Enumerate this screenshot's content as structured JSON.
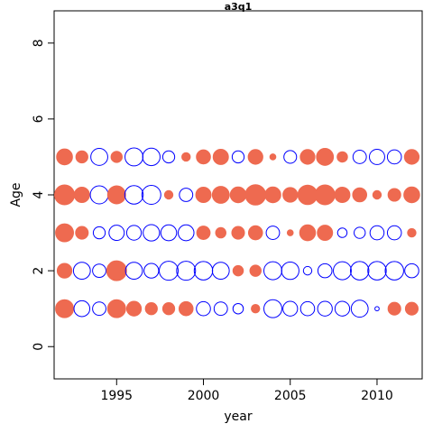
{
  "chart_data": {
    "type": "scatter",
    "title": "a3q1",
    "xlabel": "year",
    "ylabel": "Age",
    "xlim": [
      1991.4,
      2012.6
    ],
    "ylim": [
      -0.85,
      8.85
    ],
    "x_ticks": [
      1995,
      2000,
      2005,
      2010
    ],
    "y_ticks": [
      0,
      2,
      4,
      6,
      8
    ],
    "grid": false,
    "legend": "none",
    "colors": {
      "positive": "#EE6A50",
      "negative": "#0000FF"
    },
    "years": [
      1992,
      1993,
      1994,
      1995,
      1996,
      1997,
      1998,
      1999,
      2000,
      2001,
      2002,
      2003,
      2004,
      2005,
      2006,
      2007,
      2008,
      2009,
      2010,
      2011,
      2012
    ],
    "series": [
      {
        "age": 1,
        "values": [
          0.9,
          -0.7,
          -0.5,
          0.9,
          0.6,
          0.4,
          0.4,
          0.55,
          -0.55,
          -0.5,
          -0.3,
          0.2,
          -0.9,
          -0.6,
          -0.55,
          -0.6,
          -0.6,
          -0.8,
          -0.05,
          0.45,
          0.45
        ]
      },
      {
        "age": 2,
        "values": [
          0.6,
          -0.8,
          -0.5,
          1.1,
          -0.8,
          -0.6,
          -1.0,
          -1.0,
          -0.95,
          -0.8,
          0.3,
          0.35,
          -0.9,
          -0.85,
          -0.2,
          -0.55,
          -0.9,
          -0.95,
          -0.95,
          -0.95,
          -0.55
        ]
      },
      {
        "age": 3,
        "values": [
          0.9,
          0.45,
          -0.4,
          -0.65,
          -0.6,
          -0.75,
          -0.7,
          -0.7,
          0.5,
          0.3,
          0.45,
          0.55,
          -0.5,
          0.1,
          0.7,
          0.65,
          -0.25,
          -0.35,
          -0.55,
          -0.55,
          0.2
        ]
      },
      {
        "age": 4,
        "values": [
          1.1,
          0.65,
          -0.9,
          0.9,
          -0.95,
          -1.0,
          0.2,
          -0.5,
          0.65,
          0.8,
          0.7,
          1.15,
          0.7,
          0.6,
          1.05,
          1.1,
          0.65,
          0.55,
          0.2,
          0.45,
          0.7
        ]
      },
      {
        "age": 5,
        "values": [
          0.7,
          0.4,
          -0.8,
          0.35,
          -0.9,
          -0.85,
          -0.4,
          0.2,
          0.55,
          0.65,
          -0.4,
          0.6,
          0.1,
          -0.45,
          0.6,
          0.8,
          0.3,
          -0.5,
          -0.65,
          -0.55,
          0.6
        ]
      }
    ]
  }
}
